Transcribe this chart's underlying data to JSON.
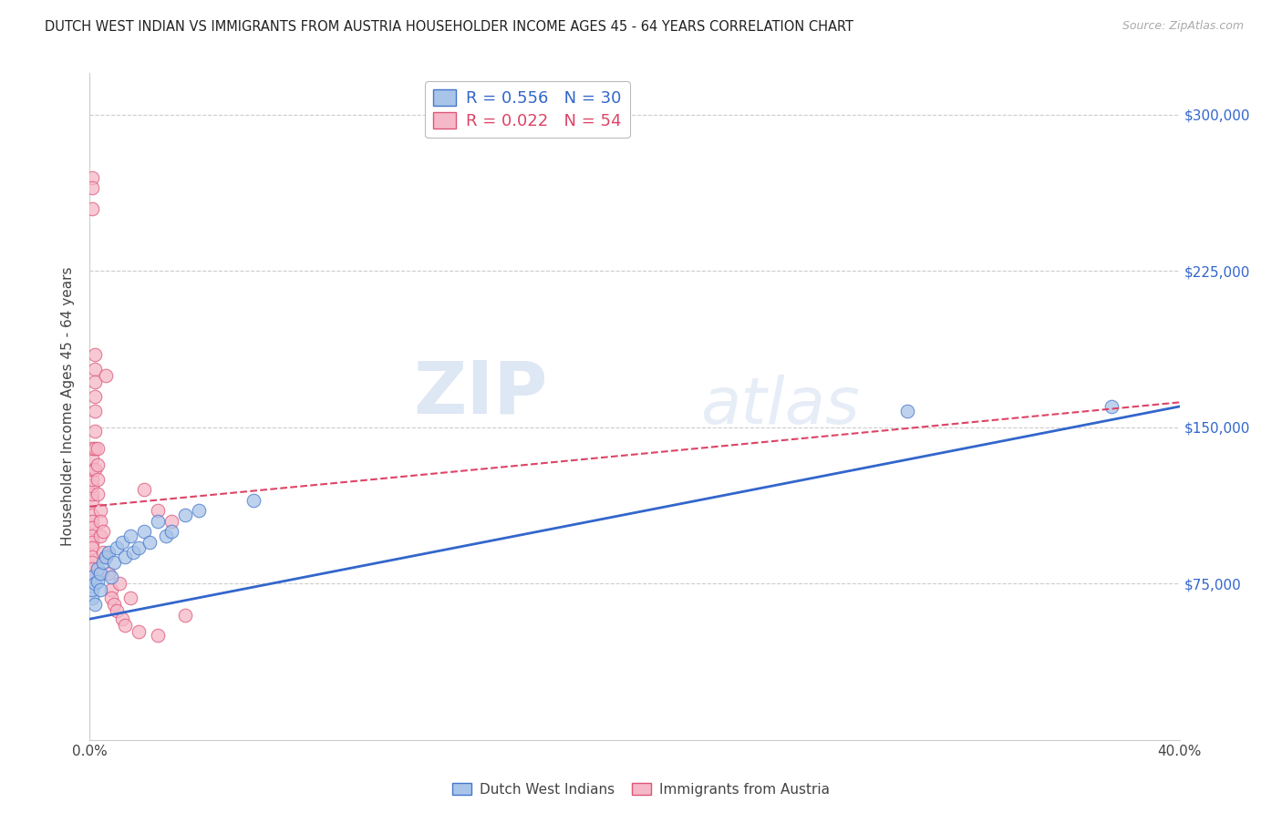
{
  "title": "DUTCH WEST INDIAN VS IMMIGRANTS FROM AUSTRIA HOUSEHOLDER INCOME AGES 45 - 64 YEARS CORRELATION CHART",
  "source": "Source: ZipAtlas.com",
  "ylabel": "Householder Income Ages 45 - 64 years",
  "xlim": [
    0,
    0.4
  ],
  "ylim": [
    0,
    320000
  ],
  "xticks": [
    0.0,
    0.05,
    0.1,
    0.15,
    0.2,
    0.25,
    0.3,
    0.35,
    0.4
  ],
  "xticklabels": [
    "0.0%",
    "",
    "",
    "",
    "",
    "",
    "",
    "",
    "40.0%"
  ],
  "ytick_positions": [
    75000,
    150000,
    225000,
    300000
  ],
  "ytick_labels": [
    "$75,000",
    "$150,000",
    "$225,000",
    "$300,000"
  ],
  "blue_R": "0.556",
  "blue_N": "30",
  "pink_R": "0.022",
  "pink_N": "54",
  "blue_color": "#a8c4e8",
  "pink_color": "#f5b8c8",
  "blue_edge_color": "#4477cc",
  "pink_edge_color": "#dd5577",
  "blue_line_color": "#3366cc",
  "pink_line_color": "#dd4466",
  "legend_label_blue": "Dutch West Indians",
  "legend_label_pink": "Immigrants from Austria",
  "watermark_zip": "ZIP",
  "watermark_atlas": "atlas",
  "blue_scatter_x": [
    0.001,
    0.001,
    0.001,
    0.002,
    0.002,
    0.003,
    0.003,
    0.004,
    0.004,
    0.005,
    0.006,
    0.007,
    0.008,
    0.009,
    0.01,
    0.012,
    0.013,
    0.015,
    0.016,
    0.018,
    0.02,
    0.022,
    0.025,
    0.028,
    0.03,
    0.035,
    0.04,
    0.06,
    0.3,
    0.375
  ],
  "blue_scatter_y": [
    68000,
    72000,
    78000,
    65000,
    75000,
    82000,
    76000,
    80000,
    72000,
    85000,
    88000,
    90000,
    78000,
    85000,
    92000,
    95000,
    88000,
    98000,
    90000,
    92000,
    100000,
    95000,
    105000,
    98000,
    100000,
    108000,
    110000,
    115000,
    158000,
    160000
  ],
  "pink_scatter_x": [
    0.001,
    0.001,
    0.001,
    0.001,
    0.001,
    0.001,
    0.001,
    0.001,
    0.001,
    0.001,
    0.001,
    0.001,
    0.001,
    0.001,
    0.001,
    0.001,
    0.001,
    0.001,
    0.001,
    0.001,
    0.002,
    0.002,
    0.002,
    0.002,
    0.002,
    0.002,
    0.002,
    0.002,
    0.003,
    0.003,
    0.003,
    0.003,
    0.004,
    0.004,
    0.004,
    0.005,
    0.005,
    0.006,
    0.006,
    0.007,
    0.008,
    0.008,
    0.009,
    0.01,
    0.011,
    0.012,
    0.013,
    0.015,
    0.018,
    0.02,
    0.025,
    0.025,
    0.03,
    0.035
  ],
  "pink_scatter_y": [
    115000,
    118000,
    122000,
    108000,
    105000,
    102000,
    98000,
    95000,
    92000,
    88000,
    85000,
    82000,
    78000,
    125000,
    130000,
    135000,
    140000,
    270000,
    265000,
    255000,
    185000,
    178000,
    172000,
    165000,
    158000,
    148000,
    140000,
    130000,
    140000,
    132000,
    125000,
    118000,
    110000,
    105000,
    98000,
    100000,
    90000,
    88000,
    175000,
    80000,
    72000,
    68000,
    65000,
    62000,
    75000,
    58000,
    55000,
    68000,
    52000,
    120000,
    110000,
    50000,
    105000,
    60000
  ],
  "blue_trendline_x": [
    0.0,
    0.4
  ],
  "blue_trendline_y": [
    58000,
    160000
  ],
  "pink_trendline_x": [
    0.0,
    0.4
  ],
  "pink_trendline_y": [
    112000,
    162000
  ]
}
